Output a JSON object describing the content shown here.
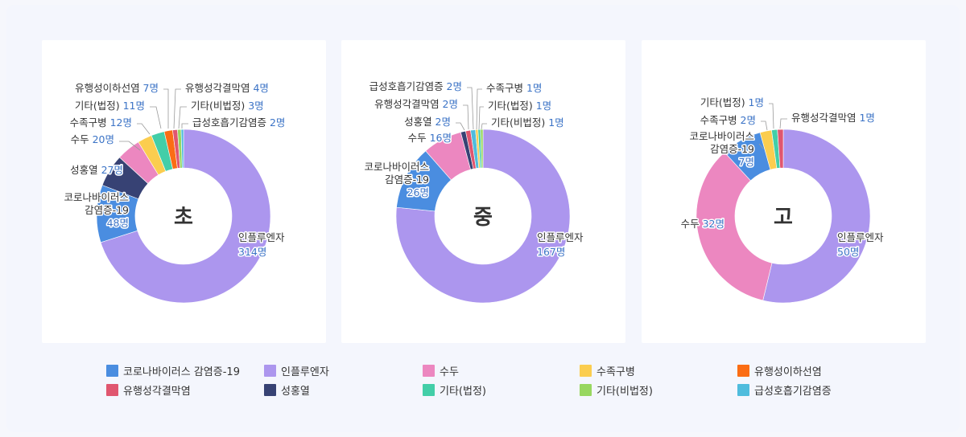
{
  "chart_data": [
    {
      "type": "pie",
      "title": "초",
      "slices": [
        {
          "key": "flu",
          "name": "인플루엔자",
          "value": 314,
          "label": "314명"
        },
        {
          "key": "covid",
          "name": "코로나바이러스 감염증-19",
          "value": 48,
          "label": "48명"
        },
        {
          "key": "scarlet",
          "name": "성홍열",
          "value": 27,
          "label": "27명"
        },
        {
          "key": "varicella",
          "name": "수두",
          "value": 20,
          "label": "20명"
        },
        {
          "key": "hfmd",
          "name": "수족구병",
          "value": 12,
          "label": "12명"
        },
        {
          "key": "etc_legal",
          "name": "기타(법정)",
          "value": 11,
          "label": "11명"
        },
        {
          "key": "mumps",
          "name": "유행성이하선염",
          "value": 7,
          "label": "7명"
        },
        {
          "key": "conj",
          "name": "유행성각결막염",
          "value": 4,
          "label": "4명"
        },
        {
          "key": "etc_nonlegal",
          "name": "기타(비법정)",
          "value": 3,
          "label": "3명"
        },
        {
          "key": "ari",
          "name": "급성호흡기감염증",
          "value": 2,
          "label": "2명"
        }
      ]
    },
    {
      "type": "pie",
      "title": "중",
      "slices": [
        {
          "key": "flu",
          "name": "인플루엔자",
          "value": 167,
          "label": "167명"
        },
        {
          "key": "covid",
          "name": "코로나바이러스 감염증-19",
          "value": 26,
          "label": "26명"
        },
        {
          "key": "varicella",
          "name": "수두",
          "value": 16,
          "label": "16명"
        },
        {
          "key": "scarlet",
          "name": "성홍열",
          "value": 2,
          "label": "2명"
        },
        {
          "key": "conj",
          "name": "유행성각결막염",
          "value": 2,
          "label": "2명"
        },
        {
          "key": "ari",
          "name": "급성호흡기감염증",
          "value": 2,
          "label": "2명"
        },
        {
          "key": "hfmd",
          "name": "수족구병",
          "value": 1,
          "label": "1명"
        },
        {
          "key": "etc_legal",
          "name": "기타(법정)",
          "value": 1,
          "label": "1명"
        },
        {
          "key": "etc_nonlegal",
          "name": "기타(비법정)",
          "value": 1,
          "label": "1명"
        }
      ]
    },
    {
      "type": "pie",
      "title": "고",
      "slices": [
        {
          "key": "flu",
          "name": "인플루엔자",
          "value": 50,
          "label": "50명"
        },
        {
          "key": "varicella",
          "name": "수두",
          "value": 32,
          "label": "32명"
        },
        {
          "key": "covid",
          "name": "코로나바이러스 감염증-19",
          "value": 7,
          "label": "7명"
        },
        {
          "key": "hfmd",
          "name": "수족구병",
          "value": 2,
          "label": "2명"
        },
        {
          "key": "etc_legal",
          "name": "기타(법정)",
          "value": 1,
          "label": "1명"
        },
        {
          "key": "conj",
          "name": "유행성각결막염",
          "value": 1,
          "label": "1명"
        }
      ]
    }
  ],
  "legend": [
    {
      "key": "covid",
      "name": "코로나바이러스 감염증-19",
      "color": "#4a8de0"
    },
    {
      "key": "flu",
      "name": "인플루엔자",
      "color": "#ac96ee"
    },
    {
      "key": "varicella",
      "name": "수두",
      "color": "#ec87c0"
    },
    {
      "key": "hfmd",
      "name": "수족구병",
      "color": "#fbcd4f"
    },
    {
      "key": "mumps",
      "name": "유행성이하선염",
      "color": "#fb6d14"
    },
    {
      "key": "conj",
      "name": "유행성각결막염",
      "color": "#e0566f"
    },
    {
      "key": "scarlet",
      "name": "성홍열",
      "color": "#374274"
    },
    {
      "key": "etc_legal",
      "name": "기타(법정)",
      "color": "#43cea8"
    },
    {
      "key": "etc_nonlegal",
      "name": "기타(비법정)",
      "color": "#98d760"
    },
    {
      "key": "ari",
      "name": "급성호흡기감염증",
      "color": "#4fbcdd"
    }
  ]
}
